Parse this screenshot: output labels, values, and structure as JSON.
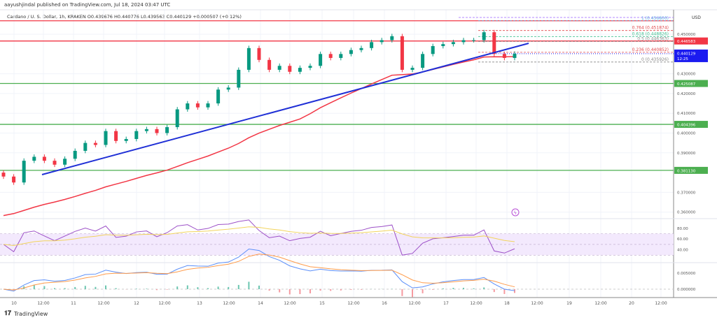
{
  "header": {
    "published": "aayushjindal published on TradingView.com, Jul 18, 2024 03:47 UTC",
    "symbol_line": "Cardano / U. S. Dollar, 1h, KRAKEN  O0.439676  H0.440776  L0.439563  C0.440129  +0.000507 (+0.12%)"
  },
  "footer": {
    "brand": "TradingView",
    "logo_text": "17"
  },
  "colors": {
    "up": "#089981",
    "down": "#f23645",
    "ma": "#f23645",
    "trendline": "#1f2fd6",
    "support": "#4caf50",
    "resistance": "#f23645",
    "rsi": "#9c4fc7",
    "rsi_ma": "#f2d45c",
    "macd": "#5b8ff9",
    "signal": "#ff9b4a",
    "current_price": "#1b1bf0"
  },
  "chart_data": {
    "type": "candlestick",
    "currency": "USD",
    "price_axis": {
      "ticks": [
        "0.450000",
        "0.430000",
        "0.420000",
        "0.410000",
        "0.400000",
        "0.390000",
        "0.370000",
        "0.360000"
      ],
      "ylim": [
        0.3555,
        0.462
      ]
    },
    "time_axis": {
      "ticks": [
        "10",
        "12:00",
        "11",
        "12:00",
        "12",
        "12:00",
        "13",
        "12:00",
        "14",
        "12:00",
        "15",
        "12:00",
        "16",
        "12:00",
        "17",
        "12:00",
        "18",
        "12:00",
        "19",
        "12:00",
        "20",
        "12:00"
      ]
    },
    "closes": [
      0.378,
      0.375,
      0.386,
      0.388,
      0.386,
      0.384,
      0.387,
      0.391,
      0.395,
      0.394,
      0.401,
      0.396,
      0.397,
      0.401,
      0.402,
      0.4,
      0.403,
      0.412,
      0.415,
      0.413,
      0.415,
      0.422,
      0.423,
      0.432,
      0.443,
      0.437,
      0.432,
      0.434,
      0.431,
      0.433,
      0.434,
      0.44,
      0.438,
      0.44,
      0.442,
      0.443,
      0.446,
      0.447,
      0.449,
      0.432,
      0.433,
      0.44,
      0.444,
      0.445,
      0.446,
      0.447,
      0.447,
      0.451,
      0.44,
      0.438,
      0.440129
    ],
    "horizontal_levels": [
      {
        "label": "0.446583",
        "value": 0.446583,
        "kind": "resistance"
      },
      {
        "label": "0.425087",
        "value": 0.425087,
        "kind": "support"
      },
      {
        "label": "0.404396",
        "value": 0.404396,
        "kind": "support"
      },
      {
        "label": "0.381130",
        "value": 0.38113,
        "kind": "support"
      }
    ],
    "top_resistance": 0.4575,
    "current_price": {
      "label": "0.440129",
      "countdown": "12:25"
    },
    "fibonacci": [
      {
        "label": "1 (0.456800)",
        "value": 0.4568,
        "color": "#5ba7e0"
      },
      {
        "label": "0.764 (0.451874)",
        "value": 0.451874,
        "color": "#e0464a"
      },
      {
        "label": "0.618 (0.448826)",
        "value": 0.448826,
        "color": "#3fbf8f"
      },
      {
        "label": "0.5 (0.446363)",
        "value": 0.446363,
        "color": "#888888"
      },
      {
        "label": "0.236 (0.440852)",
        "value": 0.440852,
        "color": "#e0464a"
      },
      {
        "label": "0 (0.435926)",
        "value": 0.435926,
        "color": "#888888"
      }
    ],
    "rsi": {
      "ticks": [
        "80.00",
        "60.00",
        "40.00"
      ],
      "band": [
        30,
        70
      ]
    },
    "macd": {
      "ticks": [
        "0.005000",
        "0.000000"
      ]
    }
  }
}
